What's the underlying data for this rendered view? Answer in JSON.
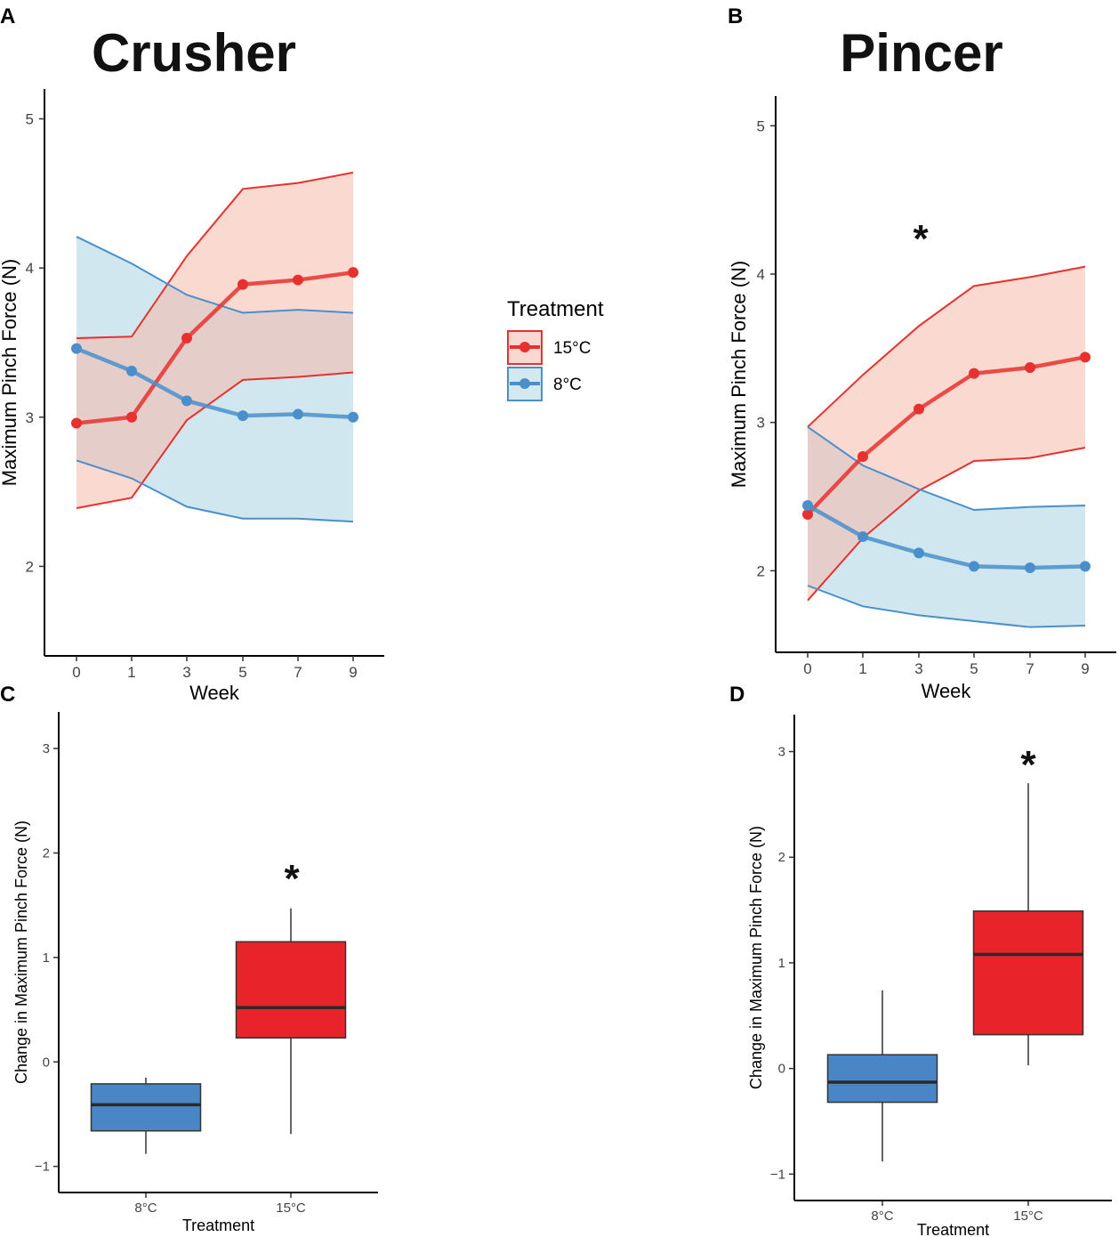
{
  "figure": {
    "panel_letters": [
      "A",
      "B",
      "C",
      "D"
    ],
    "titles": {
      "crusher": "Crusher",
      "pincer": "Pincer"
    },
    "legend": {
      "title": "Treatment",
      "items": [
        {
          "label": "15°C",
          "color": "#e8312f"
        },
        {
          "label": "8°C",
          "color": "#4a8fcc"
        }
      ]
    }
  },
  "chart_data": [
    {
      "id": "A",
      "type": "line",
      "title": "Crusher",
      "xlabel": "Week",
      "ylabel": "Maximum Pinch Force (N)",
      "categories": [
        "0",
        "1",
        "3",
        "5",
        "7",
        "9"
      ],
      "ylim": [
        1.4,
        5.2
      ],
      "yticks": [
        2,
        3,
        4,
        5
      ],
      "series": [
        {
          "name": "15°C",
          "color": "#e8312f",
          "values": [
            2.96,
            3.0,
            3.53,
            3.89,
            3.92,
            3.97
          ],
          "lower": [
            2.39,
            2.46,
            2.98,
            3.25,
            3.27,
            3.3
          ],
          "upper": [
            3.53,
            3.54,
            4.08,
            4.53,
            4.57,
            4.64
          ]
        },
        {
          "name": "8°C",
          "color": "#4a8fcc",
          "values": [
            3.46,
            3.31,
            3.11,
            3.01,
            3.02,
            3.0
          ],
          "lower": [
            2.71,
            2.59,
            2.4,
            2.32,
            2.32,
            2.3
          ],
          "upper": [
            4.21,
            4.03,
            3.82,
            3.7,
            3.72,
            3.7
          ]
        }
      ]
    },
    {
      "id": "B",
      "type": "line",
      "title": "Pincer",
      "xlabel": "Week",
      "ylabel": "Maximum Pinch Force (N)",
      "categories": [
        "0",
        "1",
        "3",
        "5",
        "7",
        "9"
      ],
      "ylim": [
        1.45,
        5.2
      ],
      "yticks": [
        2,
        3,
        4,
        5
      ],
      "annotation": "*",
      "series": [
        {
          "name": "15°C",
          "color": "#e8312f",
          "values": [
            2.38,
            2.77,
            3.09,
            3.33,
            3.37,
            3.44
          ],
          "lower": [
            1.8,
            2.22,
            2.54,
            2.74,
            2.76,
            2.83
          ],
          "upper": [
            2.97,
            3.32,
            3.65,
            3.92,
            3.98,
            4.05
          ]
        },
        {
          "name": "8°C",
          "color": "#4a8fcc",
          "values": [
            2.44,
            2.23,
            2.12,
            2.03,
            2.02,
            2.03
          ],
          "lower": [
            1.9,
            1.76,
            1.7,
            1.66,
            1.62,
            1.63
          ],
          "upper": [
            2.97,
            2.71,
            2.55,
            2.41,
            2.43,
            2.44
          ]
        }
      ]
    },
    {
      "id": "C",
      "type": "box",
      "xlabel": "Treatment",
      "ylabel": "Change in Maximum Pinch Force (N)",
      "ylim": [
        -1.25,
        3.35
      ],
      "yticks": [
        -1,
        0,
        1,
        2,
        3
      ],
      "annotation": "*",
      "boxes": [
        {
          "label": "8°C",
          "color": "#4a86c5",
          "min": -0.88,
          "q1": -0.66,
          "median": -0.41,
          "q3": -0.21,
          "max": -0.15
        },
        {
          "label": "15°C",
          "color": "#e8232a",
          "min": -0.69,
          "q1": 0.23,
          "median": 0.52,
          "q3": 1.15,
          "max": 1.47
        }
      ]
    },
    {
      "id": "D",
      "type": "box",
      "xlabel": "Treatment",
      "ylabel": "Change in Maximum Pinch Force (N)",
      "ylim": [
        -1.25,
        3.35
      ],
      "yticks": [
        -1,
        0,
        1,
        2,
        3
      ],
      "annotation": "*",
      "boxes": [
        {
          "label": "8°C",
          "color": "#4a86c5",
          "min": -0.88,
          "q1": -0.32,
          "median": -0.13,
          "q3": 0.13,
          "max": 0.74
        },
        {
          "label": "15°C",
          "color": "#e8232a",
          "min": 0.03,
          "q1": 0.32,
          "median": 1.08,
          "q3": 1.49,
          "max": 2.7
        }
      ]
    }
  ]
}
